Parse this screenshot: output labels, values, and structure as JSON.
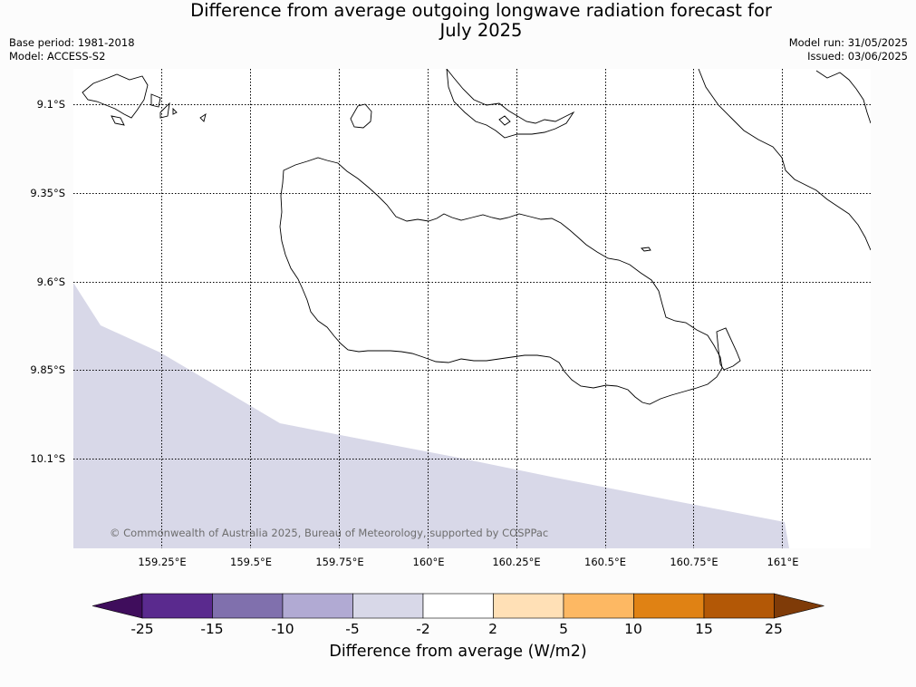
{
  "title_line1": "Difference from average outgoing longwave radiation forecast for",
  "title_line2": "July 2025",
  "base_period": "Base period: 1981-2018",
  "model": "Model: ACCESS-S2",
  "model_run": "Model run: 31/05/2025",
  "issued": "Issued: 03/06/2025",
  "copyright": "© Commonwealth of Australia 2025, Bureau of Meteorology, supported by COSPPac",
  "lat_labels": [
    "9.1°S",
    "9.35°S",
    "9.6°S",
    "9.85°S",
    "10.1°S"
  ],
  "lon_labels": [
    "159.25°E",
    "159.5°E",
    "159.75°E",
    "160°E",
    "160.25°E",
    "160.5°E",
    "160.75°E",
    "161°E"
  ],
  "colorbar": {
    "label": "Difference from average (W/m2)",
    "ticks": [
      "-25",
      "-15",
      "-10",
      "-5",
      "-2",
      "2",
      "5",
      "10",
      "15",
      "25"
    ],
    "colors": [
      "#3f0d5c",
      "#5a2a8e",
      "#8070ad",
      "#b1aad3",
      "#d8d8e8",
      "#ffffff",
      "#ffe0b6",
      "#fdb863",
      "#e08214",
      "#b35806",
      "#7f3b08"
    ]
  },
  "shaded_region_category": "-5 to -2"
}
